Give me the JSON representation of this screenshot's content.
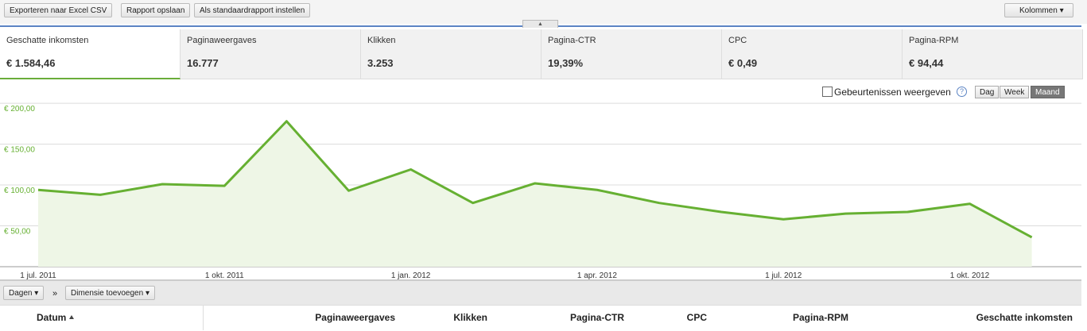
{
  "toolbar": {
    "buttons": [
      "Exporteren naar Excel CSV",
      "Rapport opslaan",
      "Als standaardrapport instellen"
    ],
    "columns": "Kolommen"
  },
  "metrics": [
    {
      "label": "Geschatte inkomsten",
      "value": "€ 1.584,46"
    },
    {
      "label": "Paginaweergaves",
      "value": "16.777"
    },
    {
      "label": "Klikken",
      "value": "3.253"
    },
    {
      "label": "Pagina-CTR",
      "value": "19,39%"
    },
    {
      "label": "CPC",
      "value": "€ 0,49"
    },
    {
      "label": "Pagina-RPM",
      "value": "€ 94,44"
    }
  ],
  "chart_controls": {
    "events": "Gebeurtenissen weergeven",
    "help": "?",
    "periods": [
      "Dag",
      "Week",
      "Maand"
    ],
    "selected_period": 2
  },
  "chart_data": {
    "type": "line",
    "color": "#66b032",
    "fill": "#eef6e6",
    "grid": true,
    "categories": [
      "1 jul. 2011",
      null,
      null,
      "1 okt. 2011",
      null,
      null,
      "1 jan. 2012",
      null,
      null,
      "1 apr. 2012",
      null,
      null,
      "1 jul. 2012",
      null,
      null,
      "1 okt. 2012",
      null
    ],
    "values": [
      94,
      88,
      101,
      99,
      178,
      93,
      119,
      78,
      102,
      94,
      78,
      67,
      58,
      65,
      67,
      77,
      36
    ],
    "ylim": [
      0,
      203
    ],
    "yticks": [
      {
        "value": 50,
        "label": "€ 50,00"
      },
      {
        "value": 100,
        "label": "€ 100,00"
      },
      {
        "value": 150,
        "label": "€ 150,00"
      },
      {
        "value": 200,
        "label": "€ 200,00"
      }
    ]
  },
  "dimension_bar": {
    "dimension": "Dagen",
    "separator": "»",
    "add": "Dimensie toevoegen"
  },
  "table": {
    "headers": [
      "Datum",
      "Paginaweergaves",
      "Klikken",
      "Pagina-CTR",
      "CPC",
      "Pagina-RPM",
      "Geschatte inkomsten"
    ]
  }
}
